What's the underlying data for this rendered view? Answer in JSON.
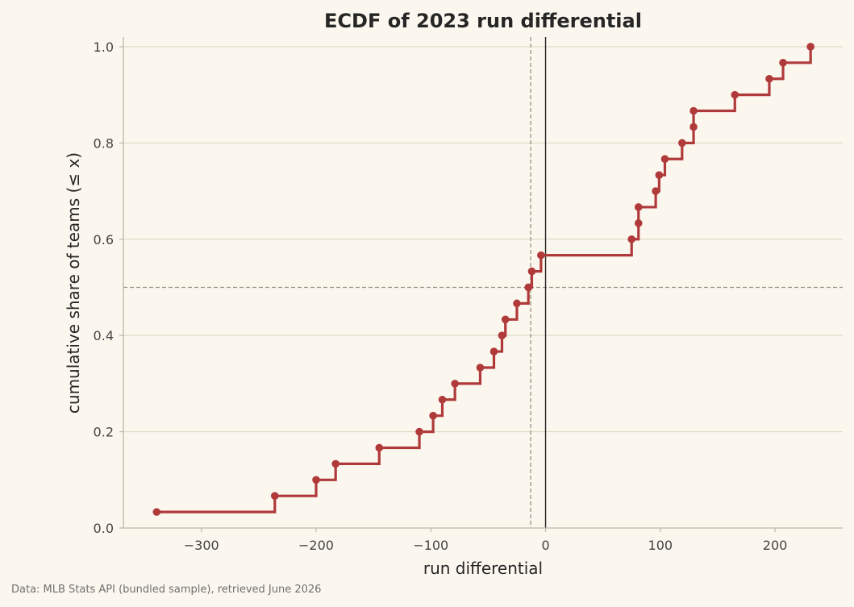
{
  "chart_data": {
    "type": "line",
    "step": "post",
    "title": "ECDF of 2023 run differential",
    "xlabel": "run differential",
    "ylabel": "cumulative share of teams (≤ x)",
    "xlim": [
      -368,
      259
    ],
    "ylim": [
      0,
      1.02
    ],
    "xticks": [
      -300,
      -200,
      -100,
      0,
      100,
      200
    ],
    "xtick_labels": [
      "−300",
      "−200",
      "−100",
      "0",
      "100",
      "200"
    ],
    "yticks": [
      0.0,
      0.2,
      0.4,
      0.6,
      0.8,
      1.0
    ],
    "ytick_labels": [
      "0.0",
      "0.2",
      "0.4",
      "0.6",
      "0.8",
      "1.0"
    ],
    "grid": "horizontal",
    "reference_lines": {
      "median_x": -13,
      "half_y": 0.5,
      "zero_x": 0
    },
    "x": [
      -339,
      -236,
      -200,
      -183,
      -145,
      -110,
      -98,
      -90,
      -79,
      -57,
      -45,
      -38,
      -35,
      -25,
      -15,
      -12,
      -4,
      75,
      81,
      81,
      96,
      99,
      104,
      119,
      129,
      129,
      165,
      195,
      207,
      231
    ],
    "y": [
      0.0333,
      0.0667,
      0.1,
      0.1333,
      0.1667,
      0.2,
      0.2333,
      0.2667,
      0.3,
      0.3333,
      0.3667,
      0.4,
      0.4333,
      0.4667,
      0.5,
      0.5333,
      0.5667,
      0.6,
      0.6333,
      0.6667,
      0.7,
      0.7333,
      0.7667,
      0.8,
      0.8333,
      0.8667,
      0.9,
      0.9333,
      0.9667,
      1.0
    ],
    "colors": {
      "series": "#b03a3a",
      "grid": "#ddd3bd",
      "reference": "#9a9080",
      "zero_line": "#222222",
      "axis": "#bfb7a6",
      "background": "#fbf7ef"
    }
  },
  "footnote": "Data: MLB Stats API (bundled sample), retrieved June 2026"
}
